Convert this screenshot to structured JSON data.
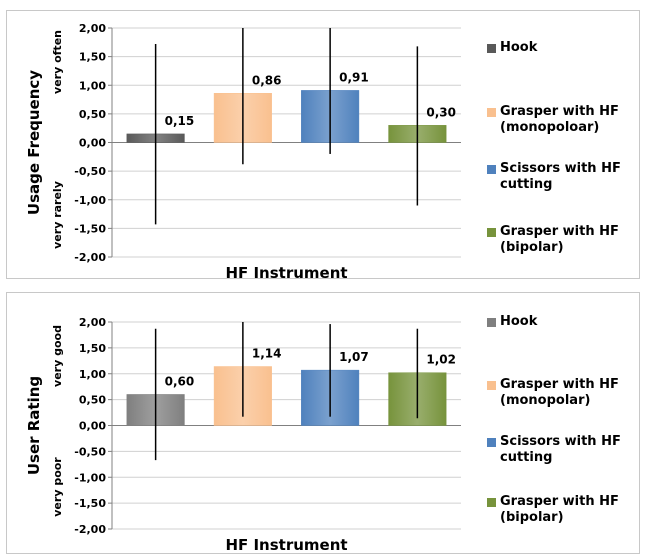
{
  "chart_data": [
    {
      "type": "bar",
      "categories": [
        "Hook",
        "Grasper with HF (monopoloar)",
        "Scissors with HF cutting",
        "Grasper with HF (bipolar)"
      ],
      "values": [
        0.15,
        0.86,
        0.91,
        0.3
      ],
      "value_labels": [
        "0,15",
        "0,86",
        "0,91",
        "0,30"
      ],
      "error_low": [
        -1.43,
        -0.38,
        -0.2,
        -1.1
      ],
      "error_high": [
        1.72,
        2.0,
        2.0,
        1.68
      ],
      "colors": [
        "#595959",
        "#f9c08f",
        "#4f81bd",
        "#77933c"
      ],
      "ylim": [
        -2,
        2
      ],
      "yticks": [
        "2,00",
        "1,50",
        "1,00",
        "0,50",
        "0,00",
        "-0,50",
        "-1,00",
        "-1,50",
        "-2,00"
      ],
      "ylabel": "Usage Frequency",
      "y_top_note": "very often",
      "y_bottom_note": "very rarely",
      "xlabel": "HF Instrument",
      "legend": [
        "Hook",
        "Grasper with HF\n(monopoloar)",
        "Scissors with HF\ncutting",
        "Grasper with HF\n(bipolar)"
      ],
      "legend_position": "right",
      "grid": true
    },
    {
      "type": "bar",
      "categories": [
        "Hook",
        "Grasper with HF (monopolar)",
        "Scissors with HF cutting",
        "Grasper with HF (bipolar)"
      ],
      "values": [
        0.6,
        1.14,
        1.07,
        1.02
      ],
      "value_labels": [
        "0,60",
        "1,14",
        "1,07",
        "1,02"
      ],
      "error_low": [
        -0.67,
        0.17,
        0.17,
        0.14
      ],
      "error_high": [
        1.87,
        2.0,
        1.96,
        1.87
      ],
      "colors": [
        "#7f7f7f",
        "#f9c08f",
        "#4f81bd",
        "#77933c"
      ],
      "ylim": [
        -2,
        2
      ],
      "yticks": [
        "2,00",
        "1,50",
        "1,00",
        "0,50",
        "0,00",
        "-0,50",
        "-1,00",
        "-1,50",
        "-2,00"
      ],
      "ylabel": "User Rating",
      "y_top_note": "very good",
      "y_bottom_note": "very poor",
      "xlabel": "HF Instrument",
      "legend": [
        "Hook",
        "Grasper with HF\n(monopolar)",
        "Scissors with HF\ncutting",
        "Grasper with HF\n(bipolar)"
      ],
      "legend_position": "right",
      "grid": true
    }
  ]
}
